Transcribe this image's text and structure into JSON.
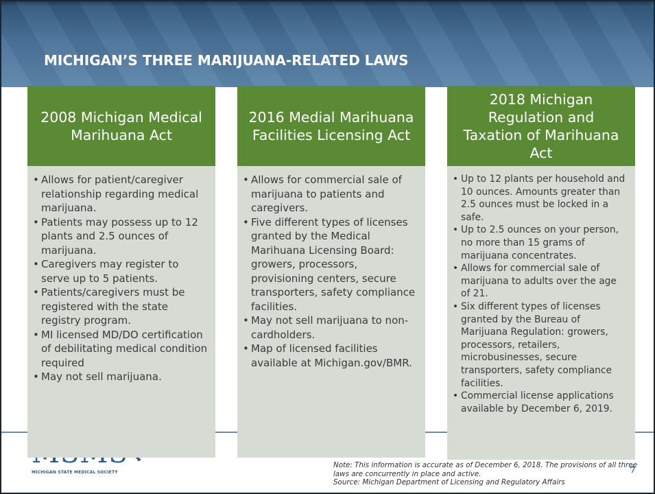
{
  "title": "MICHIGAN’S THREE MARIJUANA-RELATED LAWS",
  "columns": [
    {
      "heading": "2008 Michigan Medical Marihuana Act",
      "bullets": [
        "Allows for patient/caregiver relationship regarding medical marijuana.",
        "Patients may possess up to 12 plants and 2.5 ounces of marijuana.",
        "Caregivers may register to serve up to 5 patients.",
        "Patients/caregivers must be registered with the state registry program.",
        "MI licensed MD/DO certification of debilitating medical condition required",
        "May not sell marijuana."
      ]
    },
    {
      "heading": "2016 Medial Marihuana Facilities Licensing Act",
      "bullets": [
        "Allows for commercial sale of marijuana to patients and caregivers.",
        "Five different types of licenses granted by the Medical Marihuana Licensing Board: growers, processors, provisioning centers, secure transporters, safety compliance facilities.",
        "May not sell marijuana to non-cardholders.",
        "Map of licensed facilities available at Michigan.gov/BMR."
      ]
    },
    {
      "heading": "2018 Michigan Regulation and Taxation of Marihuana Act",
      "bullets": [
        "Up to 12 plants per household and 10 ounces.  Amounts greater than 2.5 ounces must be locked in a safe.",
        "Up to 2.5 ounces on your person, no more than 15 grams of marijuana concentrates.",
        "Allows for commercial sale of marijuana to adults over the age of 21.",
        "Six different types of licenses granted by the Bureau of Marijuana Regulation: growers, processors, retailers, microbusinesses, secure transporters, safety compliance facilities.",
        "Commercial license applications available by December 6, 2019."
      ]
    }
  ],
  "logo": {
    "name": "MSMS",
    "subtitle": "MICHIGAN STATE MEDICAL SOCIETY"
  },
  "note": [
    "Note:  This information is accurate as of December 6, 2018.  The provisions of all three laws are concurrently in place and active.",
    "Source: Michigan Department of Licensing and Regulatory Affairs"
  ],
  "page_number": "7"
}
